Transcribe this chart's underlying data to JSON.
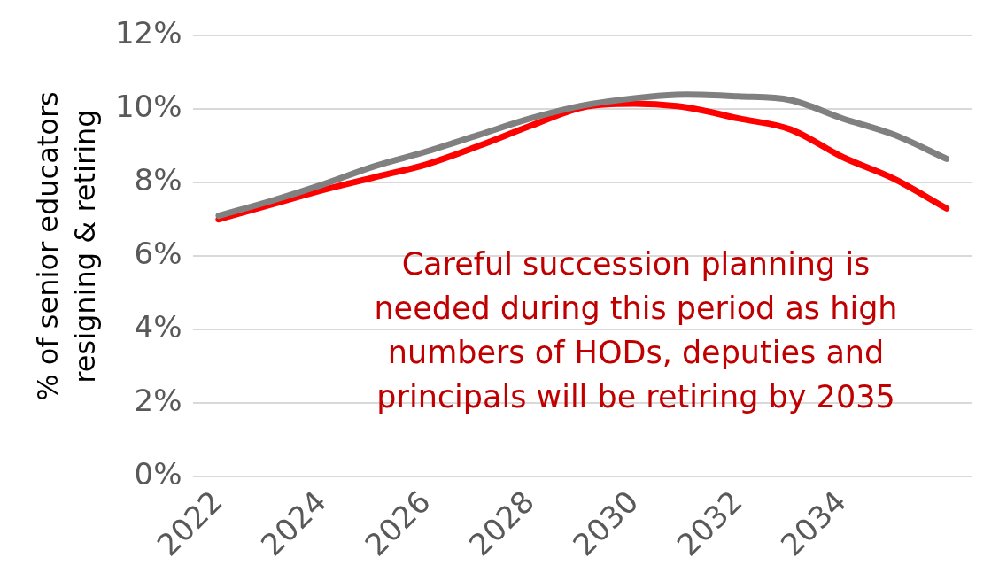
{
  "chart_data": {
    "type": "line",
    "ylabel": "% of senior educators resigning & retiring",
    "categories": [
      "2022",
      null,
      "2024",
      null,
      "2026",
      null,
      "2028",
      null,
      "2030",
      null,
      "2032",
      null,
      "2034",
      null,
      null
    ],
    "series": [
      {
        "color": "#ff0000",
        "values": [
          7.0,
          7.4,
          7.8,
          8.15,
          8.5,
          9.0,
          9.55,
          10.05,
          10.15,
          10.05,
          9.75,
          9.45,
          8.7,
          8.1,
          7.3
        ]
      },
      {
        "color": "#808080",
        "values": [
          7.1,
          7.5,
          7.95,
          8.45,
          8.85,
          9.3,
          9.75,
          10.1,
          10.3,
          10.4,
          10.35,
          10.25,
          9.75,
          9.3,
          8.65
        ]
      }
    ],
    "ylim": [
      0,
      12
    ],
    "yticks": [
      {
        "value": 0,
        "label": "0%"
      },
      {
        "value": 2,
        "label": "2%"
      },
      {
        "value": 4,
        "label": "4%"
      },
      {
        "value": 6,
        "label": "6%"
      },
      {
        "value": 8,
        "label": "8%"
      },
      {
        "value": 10,
        "label": "10%"
      },
      {
        "value": 12,
        "label": "12%"
      }
    ],
    "grid": "y",
    "legend": false,
    "annotations": [
      "Careful succession planning is needed during this period as high numbers of HODs, deputies and principals will be retiring by 2035"
    ]
  }
}
